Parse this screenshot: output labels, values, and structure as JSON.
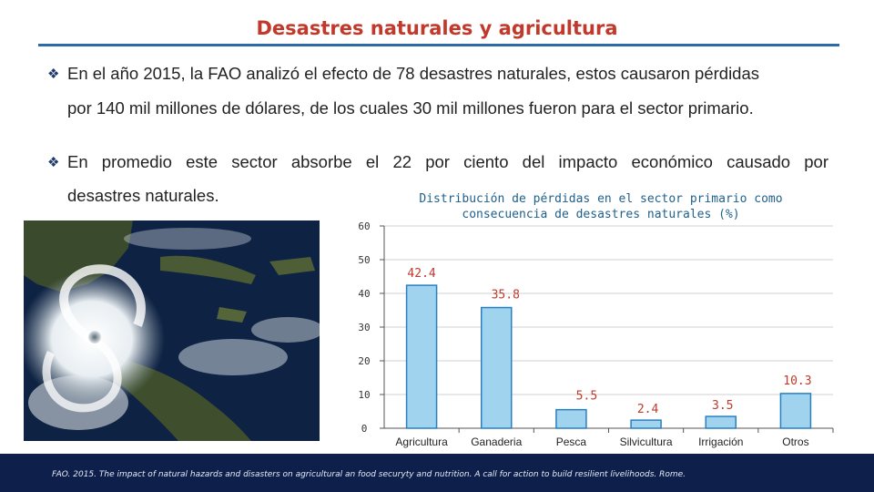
{
  "slide": {
    "title": "Desastres naturales y agricultura",
    "bullet1_line1": "En el año 2015, la FAO analizó el efecto de 78 desastres naturales, estos  causaron pérdidas",
    "bullet1_line2": "por 140 mil millones de dólares, de los cuales 30 mil millones fueron para el sector  primario.",
    "bullet2_line1": "En promedio este sector absorbe el 22 por ciento del impacto económico causado por",
    "bullet2_line2": "desastres naturales.",
    "bullet_symbol": "❖",
    "footer": "FAO. 2015. The impact of natural hazards and disasters on agricultural an food securyty and nutrition. A call for action to build resilient livelihoods. Rome.",
    "title_color": "#c0392b",
    "rule_color": "#2e6aa6",
    "footer_color": "#0d1f4a"
  },
  "chart_data": {
    "type": "bar",
    "title_line1": "Distribución de pérdidas en el sector primario como",
    "title_line2": "consecuencia de desastres naturales (%)",
    "categories": [
      "Agricultura",
      "Ganaderia",
      "Pesca",
      "Silvicultura",
      "Irrigación",
      "Otros"
    ],
    "values": [
      42.4,
      35.8,
      5.5,
      2.4,
      3.5,
      10.3
    ],
    "data_labels": [
      "42.4",
      "35.8",
      "5.5",
      "2.4",
      "3.5",
      "10.3"
    ],
    "ylim": [
      0,
      60
    ],
    "yticks": [
      "0",
      "10",
      "20",
      "30",
      "40",
      "50",
      "60"
    ],
    "grid": true,
    "legend": "none",
    "bar_fill": "#9fd3ee",
    "bar_stroke": "#2a7fc0",
    "label_color": "#c0392b"
  }
}
